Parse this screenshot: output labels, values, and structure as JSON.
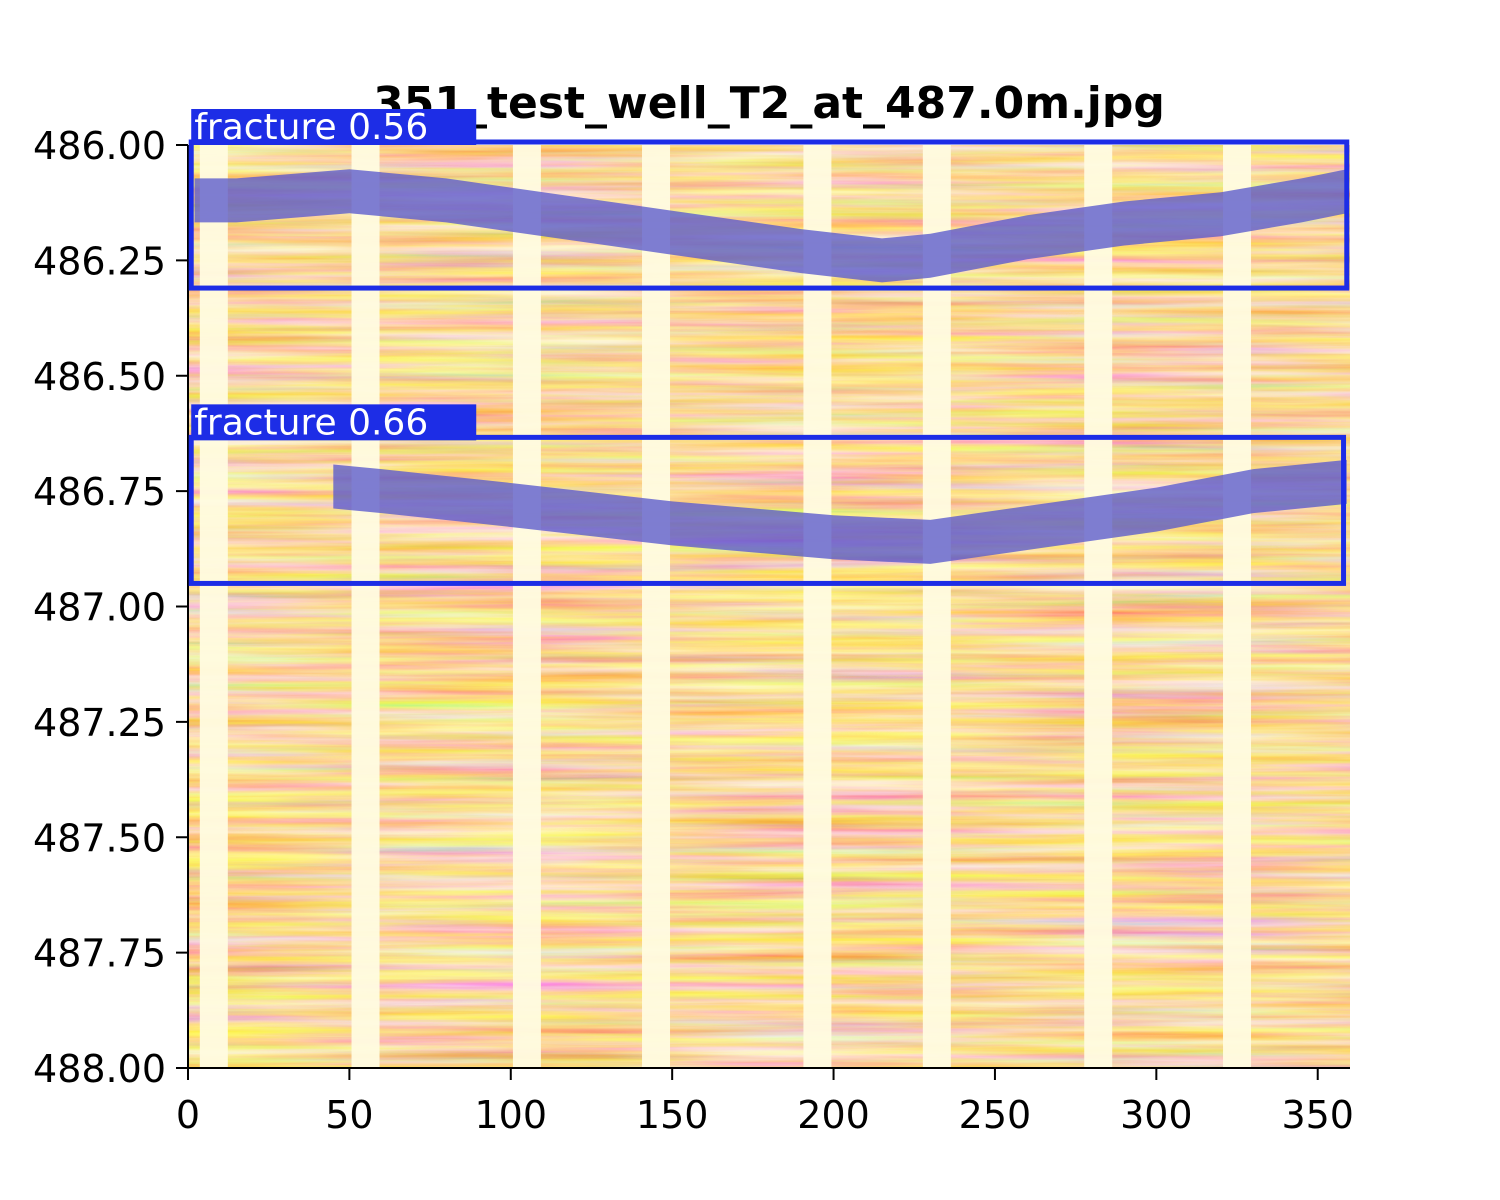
{
  "chart_data": {
    "type": "heatmap",
    "title": "351_test_well_T2_at_487.0m.jpg",
    "xlabel": "",
    "ylabel": "",
    "xlim": [
      0,
      360
    ],
    "ylim": [
      486.0,
      488.0
    ],
    "y_inverted": true,
    "x_ticks": [
      "0",
      "50",
      "100",
      "150",
      "200",
      "250",
      "300",
      "350"
    ],
    "y_ticks": [
      "486.00",
      "486.25",
      "486.50",
      "486.75",
      "487.00",
      "487.25",
      "487.50",
      "487.75",
      "488.00"
    ],
    "grid": false,
    "colormap": [
      "#fffbe0",
      "#f5b05a",
      "#d2741f",
      "#7a2f05"
    ],
    "pad_columns_deg": [
      8,
      55,
      105,
      145,
      195,
      232,
      282,
      325
    ],
    "pad_color": "#fffbe0",
    "detections": [
      {
        "label": "fracture 0.56",
        "class": "fracture",
        "score": 0.56,
        "x_range": [
          1,
          359
        ],
        "depth_range": [
          486.0,
          486.31
        ],
        "trace": [
          [
            2,
            486.12
          ],
          [
            15,
            486.12
          ],
          [
            50,
            486.1
          ],
          [
            80,
            486.12
          ],
          [
            110,
            486.15
          ],
          [
            150,
            486.19
          ],
          [
            190,
            486.23
          ],
          [
            215,
            486.25
          ],
          [
            230,
            486.24
          ],
          [
            260,
            486.2
          ],
          [
            290,
            486.17
          ],
          [
            320,
            486.15
          ],
          [
            345,
            486.12
          ],
          [
            359,
            486.1
          ]
        ]
      },
      {
        "label": "fracture 0.66",
        "class": "fracture",
        "score": 0.66,
        "x_range": [
          1,
          358
        ],
        "depth_range": [
          486.64,
          486.95
        ],
        "trace": [
          [
            45,
            486.74
          ],
          [
            60,
            486.75
          ],
          [
            100,
            486.78
          ],
          [
            150,
            486.82
          ],
          [
            200,
            486.85
          ],
          [
            230,
            486.86
          ],
          [
            260,
            486.83
          ],
          [
            300,
            486.79
          ],
          [
            330,
            486.75
          ],
          [
            359,
            486.73
          ]
        ]
      }
    ],
    "box_color": "#1d2de6",
    "fill_color": "#5a5acd"
  }
}
